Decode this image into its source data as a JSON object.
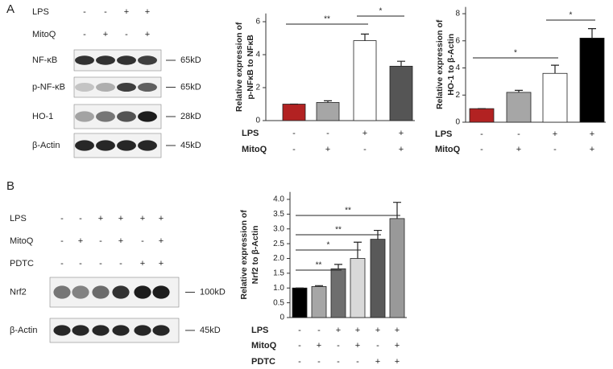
{
  "panels": {
    "a": "A",
    "b": "B"
  },
  "blot_a": {
    "conditions": [
      {
        "name": "LPS",
        "signs": [
          "-",
          "-",
          "+",
          "+"
        ]
      },
      {
        "name": "MitoQ",
        "signs": [
          "-",
          "+",
          "-",
          "+"
        ]
      }
    ],
    "bands": [
      {
        "name": "NF-κB",
        "size": "65kD"
      },
      {
        "name": "p-NF-κB",
        "size": "65kD"
      },
      {
        "name": "HO-1",
        "size": "28kD"
      },
      {
        "name": "β-Actin",
        "size": "45kD"
      }
    ]
  },
  "blot_b": {
    "conditions": [
      {
        "name": "LPS",
        "signs": [
          "-",
          "-",
          "+",
          "+",
          "+",
          "+"
        ]
      },
      {
        "name": "MitoQ",
        "signs": [
          "-",
          "+",
          "-",
          "+",
          "-",
          "+"
        ]
      },
      {
        "name": "PDTC",
        "signs": [
          "-",
          "-",
          "-",
          "-",
          "+",
          "+"
        ]
      }
    ],
    "bands": [
      {
        "name": "Nrf2",
        "size": "100kD"
      },
      {
        "name": "β-Actin",
        "size": "45kD"
      }
    ]
  },
  "chart_data": [
    {
      "type": "bar",
      "ylabel": [
        "Relative expression of",
        "p-NFκB to NFκB"
      ],
      "values": [
        1,
        1.1,
        4.85,
        3.3
      ],
      "errors": [
        0,
        0.1,
        0.4,
        0.3
      ],
      "colors": [
        "#b22222",
        "#a6a6a6",
        "#ffffff",
        "#555555"
      ],
      "ylim": [
        0,
        6.5
      ],
      "yticks": [
        0,
        2,
        4,
        6
      ],
      "conditions": [
        {
          "name": "LPS",
          "signs": [
            "-",
            "-",
            "+",
            "+"
          ]
        },
        {
          "name": "MitoQ",
          "signs": [
            "-",
            "+",
            "-",
            "+"
          ]
        }
      ],
      "annotations": [
        {
          "label": "**",
          "between": [
            0,
            2
          ]
        },
        {
          "label": "*",
          "between": [
            2,
            3
          ]
        }
      ]
    },
    {
      "type": "bar",
      "ylabel": [
        "Relative expression of",
        "HO-1 to β-Actin"
      ],
      "values": [
        1,
        2.2,
        3.6,
        6.2
      ],
      "errors": [
        0,
        0.15,
        0.6,
        0.7
      ],
      "colors": [
        "#b22222",
        "#a6a6a6",
        "#ffffff",
        "#000000"
      ],
      "ylim": [
        0,
        8.5
      ],
      "yticks": [
        0,
        2,
        4,
        6,
        8
      ],
      "conditions": [
        {
          "name": "LPS",
          "signs": [
            "-",
            "-",
            "+",
            "+"
          ]
        },
        {
          "name": "MitoQ",
          "signs": [
            "-",
            "+",
            "-",
            "+"
          ]
        }
      ],
      "annotations": [
        {
          "label": "*",
          "between": [
            0,
            2
          ]
        },
        {
          "label": "*",
          "between": [
            2,
            3
          ]
        }
      ]
    },
    {
      "type": "bar",
      "ylabel": [
        "Relative expression of",
        "Nrf2 to β-Actin"
      ],
      "values": [
        1.0,
        1.05,
        1.65,
        2.0,
        2.65,
        3.35
      ],
      "errors": [
        0,
        0.03,
        0.15,
        0.55,
        0.3,
        0.55
      ],
      "colors": [
        "#000000",
        "#a6a6a6",
        "#6e6e6e",
        "#d9d9d9",
        "#595959",
        "#999999"
      ],
      "ylim": [
        0,
        4.25
      ],
      "yticks": [
        0,
        0.5,
        {
          "value": 1,
          "label": "1.0"
        },
        1.5,
        {
          "value": 2,
          "label": "2.0"
        },
        2.5,
        {
          "value": 3,
          "label": "3.0"
        },
        3.5,
        {
          "value": 4,
          "label": "4.0"
        }
      ],
      "conditions": [
        {
          "name": "LPS",
          "signs": [
            "-",
            "-",
            "+",
            "+",
            "+",
            "+"
          ]
        },
        {
          "name": "MitoQ",
          "signs": [
            "-",
            "+",
            "-",
            "+",
            "-",
            "+"
          ]
        },
        {
          "name": "PDTC",
          "signs": [
            "-",
            "-",
            "-",
            "-",
            "+",
            "+"
          ]
        }
      ],
      "annotations": [
        {
          "label": "**",
          "between": [
            0,
            2
          ]
        },
        {
          "label": "*",
          "between": [
            0,
            3
          ]
        },
        {
          "label": "**",
          "between": [
            0,
            4
          ]
        },
        {
          "label": "**",
          "between": [
            0,
            5
          ]
        }
      ]
    }
  ]
}
